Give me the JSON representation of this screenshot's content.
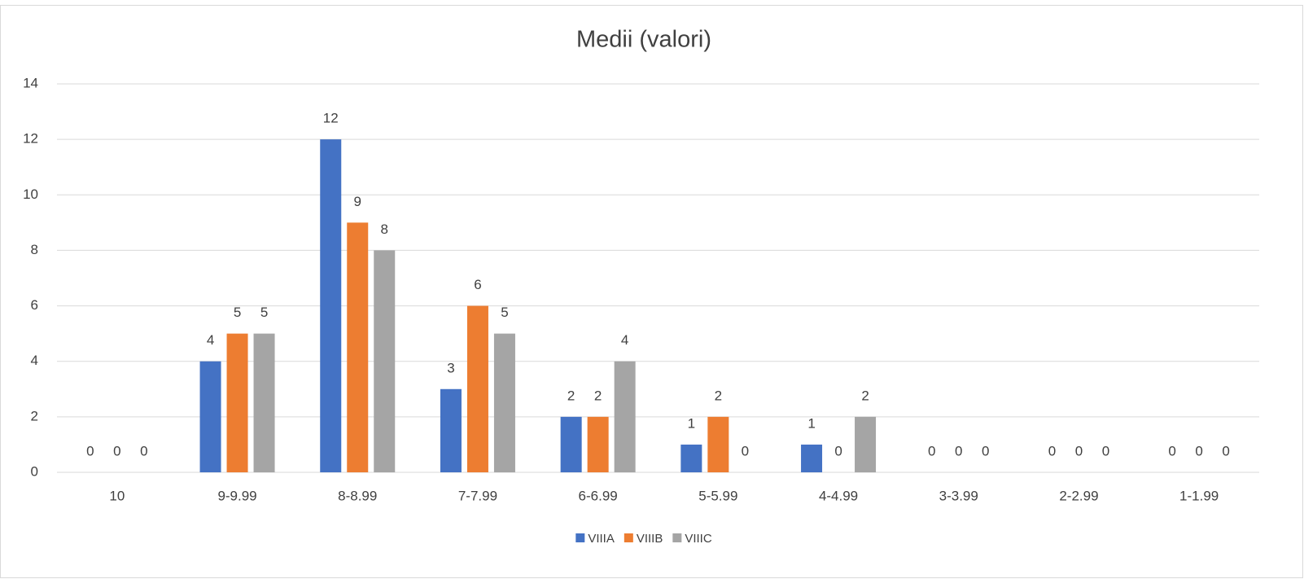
{
  "chart_data": {
    "type": "bar",
    "title": "Medii (valori)",
    "categories": [
      "10",
      "9-9.99",
      "8-8.99",
      "7-7.99",
      "6-6.99",
      "5-5.99",
      "4-4.99",
      "3-3.99",
      "2-2.99",
      "1-1.99"
    ],
    "series": [
      {
        "name": "VIIIA",
        "color": "#4472c4",
        "values": [
          0,
          4,
          12,
          3,
          2,
          1,
          1,
          0,
          0,
          0
        ]
      },
      {
        "name": "VIIIB",
        "color": "#ed7d31",
        "values": [
          0,
          5,
          9,
          6,
          2,
          2,
          0,
          0,
          0,
          0
        ]
      },
      {
        "name": "VIIIC",
        "color": "#a5a5a5",
        "values": [
          0,
          5,
          8,
          5,
          4,
          0,
          2,
          0,
          0,
          0
        ]
      }
    ],
    "ylim": [
      0,
      14
    ],
    "yticks": [
      0,
      2,
      4,
      6,
      8,
      10,
      12,
      14
    ],
    "grid": true,
    "legend": "bottom"
  }
}
